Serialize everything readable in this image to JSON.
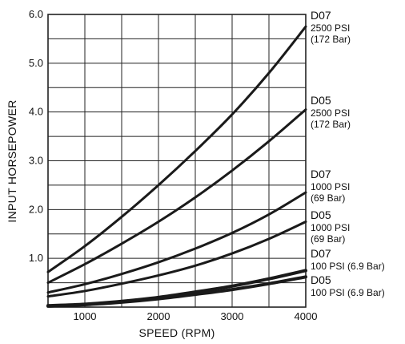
{
  "chart_data": {
    "type": "line",
    "title": "",
    "xlabel": "SPEED (RPM)",
    "ylabel": "INPUT HORSEPOWER",
    "xlim": [
      500,
      4000
    ],
    "ylim": [
      0,
      6.0
    ],
    "grid": true,
    "legend": "right-end labels",
    "x_ticks": [
      1000,
      2000,
      3000,
      4000
    ],
    "x_tick_labels": [
      "1000",
      "2000",
      "3000",
      "4000"
    ],
    "y_ticks": [
      1.0,
      2.0,
      3.0,
      4.0,
      5.0,
      6.0
    ],
    "y_tick_labels": [
      "1.0",
      "2.0",
      "3.0",
      "4.0",
      "5.0",
      "6.0"
    ],
    "x": [
      500,
      1000,
      1500,
      2000,
      2500,
      3000,
      3500,
      4000
    ],
    "series": [
      {
        "name": "D07",
        "label_lines": [
          "2500 PSI",
          "(172 Bar)"
        ],
        "values": [
          0.72,
          1.25,
          1.85,
          2.5,
          3.2,
          3.95,
          4.8,
          5.75
        ]
      },
      {
        "name": "D05",
        "label_lines": [
          "2500 PSI",
          "(172 Bar)"
        ],
        "values": [
          0.5,
          0.88,
          1.3,
          1.75,
          2.25,
          2.8,
          3.4,
          4.05
        ]
      },
      {
        "name": "D07",
        "label_lines": [
          "1000 PSI",
          "(69 Bar)"
        ],
        "values": [
          0.3,
          0.47,
          0.68,
          0.92,
          1.2,
          1.52,
          1.9,
          2.35
        ]
      },
      {
        "name": "D05",
        "label_lines": [
          "1000 PSI",
          "(69 Bar)"
        ],
        "values": [
          0.22,
          0.33,
          0.48,
          0.65,
          0.85,
          1.1,
          1.4,
          1.75
        ]
      },
      {
        "name": "D07",
        "label_lines": [
          "100 PSI (6.9 Bar)"
        ],
        "values": [
          0.03,
          0.06,
          0.12,
          0.2,
          0.31,
          0.43,
          0.58,
          0.75
        ]
      },
      {
        "name": "D05",
        "label_lines": [
          "100 PSI (6.9 Bar)"
        ],
        "values": [
          0.02,
          0.05,
          0.1,
          0.17,
          0.26,
          0.36,
          0.48,
          0.62
        ]
      }
    ]
  },
  "colors": {
    "line": "#1a1a1a",
    "grid": "#222222",
    "background": "#ffffff"
  }
}
